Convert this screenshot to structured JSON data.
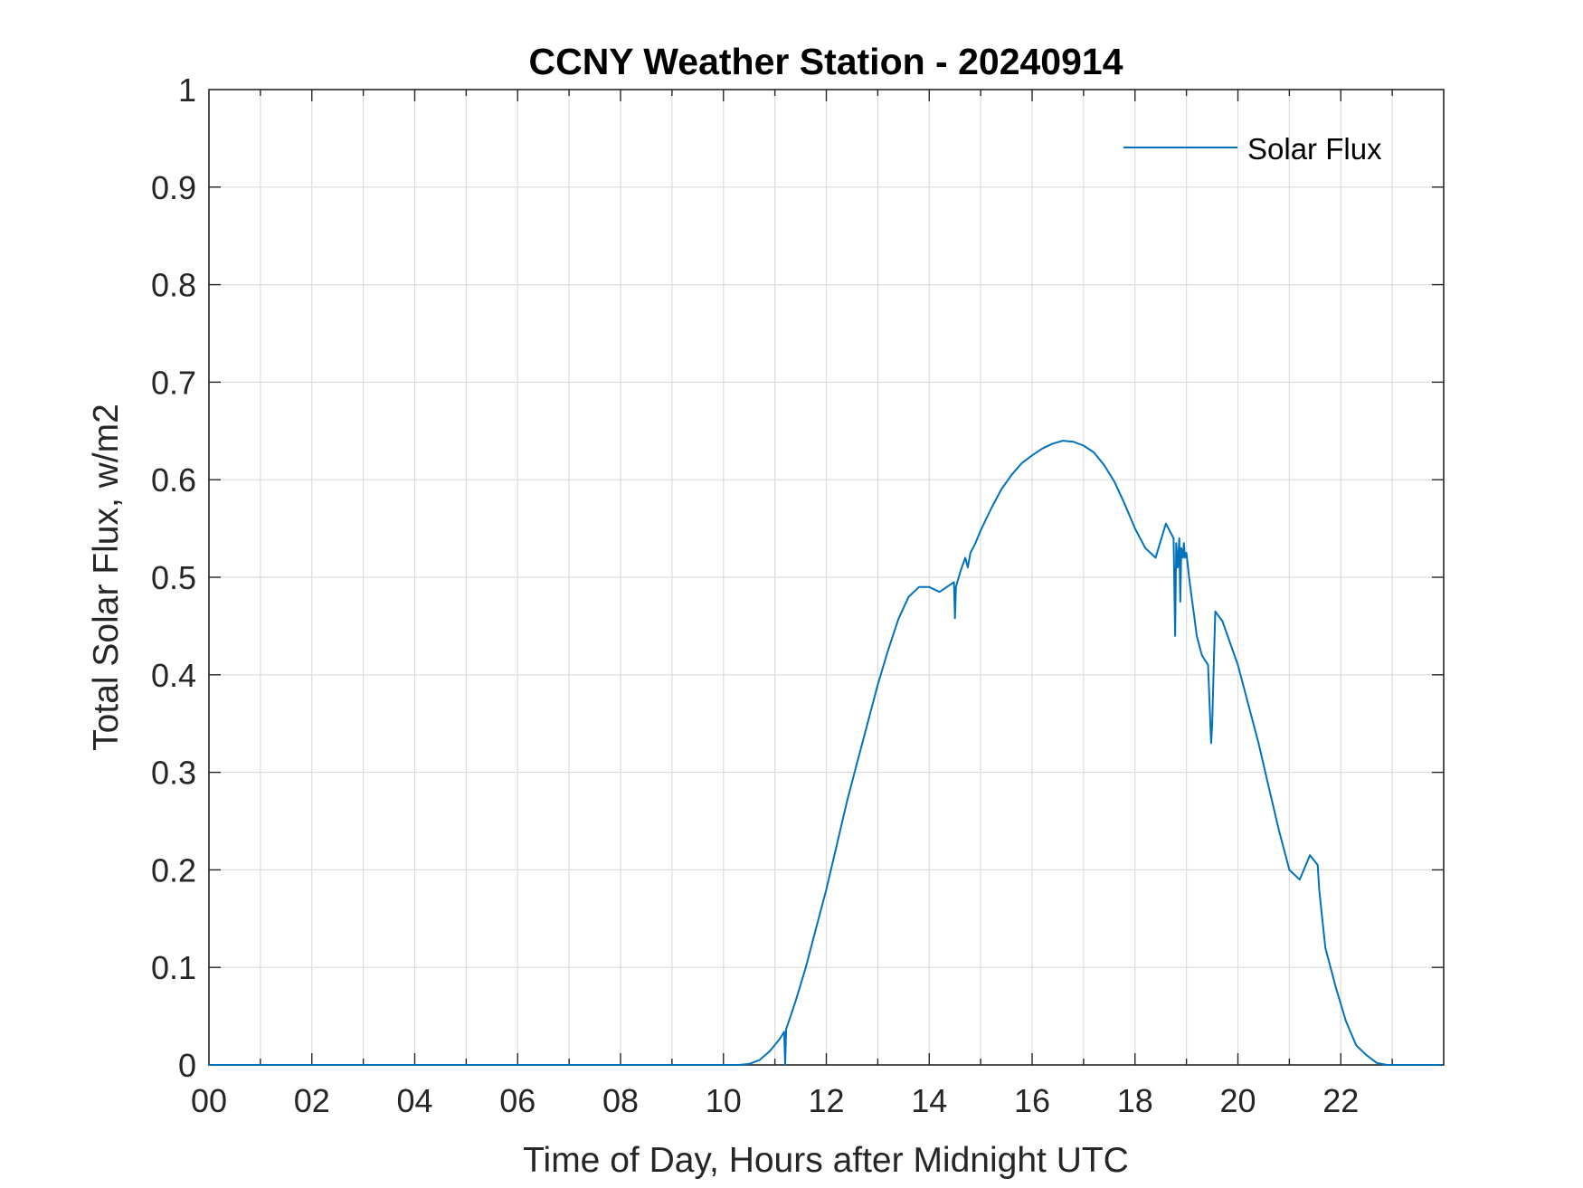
{
  "chart_data": {
    "type": "line",
    "title": "CCNY Weather Station - 20240914",
    "xlabel": "Time of Day, Hours after Midnight UTC",
    "ylabel": "Total Solar Flux, w/m2",
    "xlim": [
      0,
      24
    ],
    "ylim": [
      0,
      1
    ],
    "xticks": [
      0,
      2,
      4,
      6,
      8,
      10,
      12,
      14,
      16,
      18,
      20,
      22
    ],
    "xtick_labels": [
      "00",
      "02",
      "04",
      "06",
      "08",
      "10",
      "12",
      "14",
      "16",
      "18",
      "20",
      "22"
    ],
    "yticks": [
      0,
      0.1,
      0.2,
      0.3,
      0.4,
      0.5,
      0.6,
      0.7,
      0.8,
      0.9,
      1
    ],
    "ytick_labels": [
      "0",
      "0.1",
      "0.2",
      "0.3",
      "0.4",
      "0.5",
      "0.6",
      "0.7",
      "0.8",
      "0.9",
      "1"
    ],
    "grid": true,
    "legend_position": "top-right",
    "series": [
      {
        "name": "Solar Flux",
        "color": "#0072BD",
        "x": [
          0,
          10.3,
          10.5,
          10.7,
          10.9,
          11.1,
          11.18,
          11.2,
          11.22,
          11.24,
          11.4,
          11.6,
          11.8,
          12.0,
          12.2,
          12.4,
          12.6,
          12.8,
          13.0,
          13.2,
          13.4,
          13.6,
          13.8,
          14.0,
          14.2,
          14.4,
          14.48,
          14.5,
          14.52,
          14.6,
          14.7,
          14.75,
          14.8,
          14.85,
          14.9,
          15.0,
          15.2,
          15.4,
          15.6,
          15.8,
          16.0,
          16.2,
          16.4,
          16.6,
          16.8,
          17.0,
          17.2,
          17.4,
          17.6,
          17.8,
          18.0,
          18.2,
          18.4,
          18.6,
          18.75,
          18.78,
          18.8,
          18.83,
          18.86,
          18.88,
          18.9,
          18.93,
          18.95,
          18.97,
          19.0,
          19.05,
          19.1,
          19.15,
          19.2,
          19.3,
          19.42,
          19.48,
          19.5,
          19.53,
          19.56,
          19.6,
          19.7,
          19.8,
          20.0,
          20.2,
          20.4,
          20.6,
          20.8,
          21.0,
          21.2,
          21.4,
          21.55,
          21.58,
          21.62,
          21.7,
          21.9,
          22.1,
          22.3,
          22.5,
          22.7,
          22.9,
          23.0,
          23.2,
          23.4,
          23.6,
          23.95
        ],
        "y": [
          0,
          0,
          0.001,
          0.005,
          0.014,
          0.027,
          0.034,
          0,
          0.037,
          0.04,
          0.065,
          0.1,
          0.14,
          0.18,
          0.225,
          0.27,
          0.31,
          0.35,
          0.39,
          0.425,
          0.457,
          0.48,
          0.49,
          0.49,
          0.485,
          0.492,
          0.495,
          0.458,
          0.49,
          0.505,
          0.52,
          0.51,
          0.525,
          0.53,
          0.535,
          0.548,
          0.57,
          0.59,
          0.605,
          0.617,
          0.625,
          0.632,
          0.637,
          0.64,
          0.639,
          0.635,
          0.628,
          0.615,
          0.598,
          0.575,
          0.55,
          0.53,
          0.52,
          0.555,
          0.54,
          0.44,
          0.535,
          0.51,
          0.54,
          0.475,
          0.53,
          0.52,
          0.535,
          0.52,
          0.525,
          0.5,
          0.48,
          0.46,
          0.44,
          0.42,
          0.41,
          0.33,
          0.35,
          0.41,
          0.465,
          0.462,
          0.455,
          0.44,
          0.41,
          0.37,
          0.33,
          0.285,
          0.24,
          0.2,
          0.19,
          0.215,
          0.205,
          0.18,
          0.16,
          0.12,
          0.08,
          0.045,
          0.02,
          0.01,
          0.002,
          0,
          0,
          0,
          0,
          0,
          0
        ]
      }
    ]
  }
}
